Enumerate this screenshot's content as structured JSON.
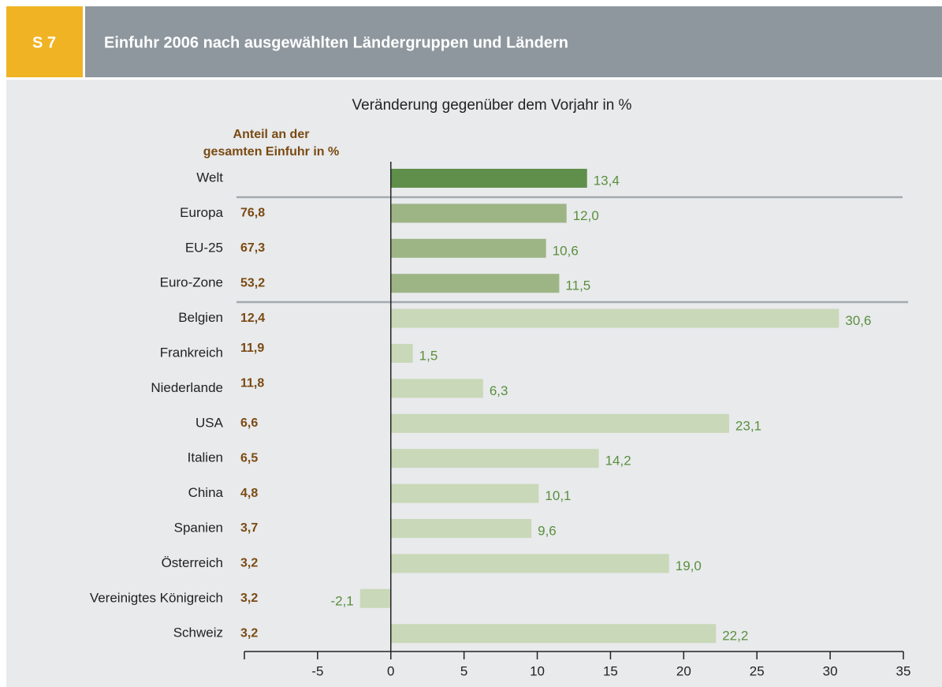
{
  "chart_data": {
    "type": "barh",
    "section": "S 7",
    "title": "Einfuhr 2006 nach ausgewählten Ländergruppen und Ländern",
    "subtitle": "Veränderung gegenüber dem Vorjahr in %",
    "share_title": [
      "Anteil an der",
      "gesamten Einfuhr in %"
    ],
    "categories": [
      "Welt",
      "Europa",
      "EU-25",
      "Euro-Zone",
      "Belgien",
      "Frankreich",
      "Niederlande",
      "USA",
      "Italien",
      "China",
      "Spanien",
      "Österreich",
      "Vereinigtes Königreich",
      "Schweiz"
    ],
    "values": [
      13.4,
      12.0,
      10.6,
      11.5,
      30.6,
      1.5,
      6.3,
      23.1,
      14.2,
      10.1,
      9.6,
      19.0,
      -2.1,
      22.2
    ],
    "value_labels": [
      "13,4",
      "12,0",
      "10,6",
      "11,5",
      "30,6",
      "1,5",
      "6,3",
      "23,1",
      "14,2",
      "10,1",
      "9,6",
      "19,0",
      "-2,1",
      "22,2"
    ],
    "shares": [
      null,
      76.8,
      67.3,
      53.2,
      12.4,
      11.9,
      11.8,
      6.6,
      6.5,
      4.8,
      3.7,
      3.2,
      3.2,
      3.2
    ],
    "share_labels": [
      null,
      "76,8",
      "67,3",
      "53,2",
      "12,4",
      "11,9",
      "11,8",
      "6,6",
      "6,5",
      "4,8",
      "3,7",
      "3,2",
      "3,2",
      "3,2"
    ],
    "colors": [
      "#5f8f4a",
      "#9db585",
      "#9db585",
      "#9db585",
      "#c9d8b8",
      "#c9d8b8",
      "#c9d8b8",
      "#c9d8b8",
      "#c9d8b8",
      "#c9d8b8",
      "#c9d8b8",
      "#c9d8b8",
      "#c9d8b8",
      "#c9d8b8"
    ],
    "xlim": [
      -10,
      35
    ],
    "xticks": [
      -5,
      0,
      5,
      10,
      15,
      20,
      25,
      30,
      35
    ]
  }
}
